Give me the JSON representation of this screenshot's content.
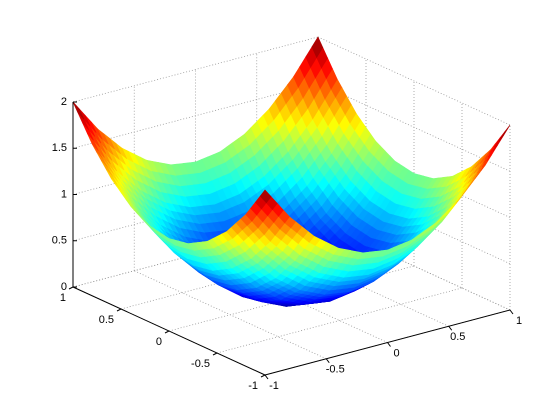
{
  "chart_data": {
    "type": "surface",
    "x": [
      -1,
      -0.8,
      -0.6,
      -0.4,
      -0.2,
      0,
      0.2,
      0.4,
      0.6,
      0.8,
      1
    ],
    "y": [
      -1,
      -0.8,
      -0.6,
      -0.4,
      -0.2,
      0,
      0.2,
      0.4,
      0.6,
      0.8,
      1
    ],
    "z": [
      [
        2,
        1.64,
        1.36,
        1.16,
        1.04,
        1,
        1.04,
        1.16,
        1.36,
        1.64,
        2
      ],
      [
        1.64,
        1.28,
        1,
        0.8,
        0.68,
        0.64,
        0.68,
        0.8,
        1,
        1.28,
        1.64
      ],
      [
        1.36,
        1,
        0.72,
        0.52,
        0.4,
        0.36,
        0.4,
        0.52,
        0.72,
        1,
        1.36
      ],
      [
        1.16,
        0.8,
        0.52,
        0.32,
        0.2,
        0.16,
        0.2,
        0.32,
        0.52,
        0.8,
        1.16
      ],
      [
        1.04,
        0.68,
        0.4,
        0.2,
        0.08,
        0.04,
        0.08,
        0.2,
        0.4,
        0.68,
        1.04
      ],
      [
        1,
        0.64,
        0.36,
        0.16,
        0.04,
        0,
        0.04,
        0.16,
        0.36,
        0.64,
        1
      ],
      [
        1.04,
        0.68,
        0.4,
        0.2,
        0.08,
        0.04,
        0.08,
        0.2,
        0.4,
        0.68,
        1.04
      ],
      [
        1.16,
        0.8,
        0.52,
        0.32,
        0.2,
        0.16,
        0.2,
        0.32,
        0.52,
        0.8,
        1.16
      ],
      [
        1.36,
        1,
        0.72,
        0.52,
        0.4,
        0.36,
        0.4,
        0.52,
        0.72,
        1,
        1.36
      ],
      [
        1.64,
        1.28,
        1,
        0.8,
        0.68,
        0.64,
        0.68,
        0.8,
        1,
        1.28,
        1.64
      ],
      [
        2,
        1.64,
        1.36,
        1.16,
        1.04,
        1,
        1.04,
        1.16,
        1.36,
        1.64,
        2
      ]
    ],
    "xlim": [
      -1,
      1
    ],
    "ylim": [
      -1,
      1
    ],
    "zlim": [
      0,
      2
    ],
    "xticks": [
      -1,
      -0.5,
      0,
      0.5,
      1
    ],
    "yticks": [
      -1,
      -0.5,
      0,
      0.5,
      1
    ],
    "zticks": [
      0,
      0.5,
      1,
      1.5,
      2
    ],
    "colormap": "jet",
    "grid": true
  }
}
